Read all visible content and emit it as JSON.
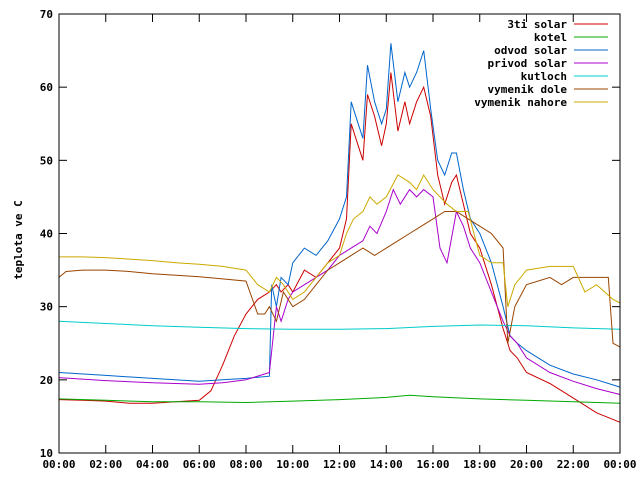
{
  "chart_data": {
    "type": "line",
    "title": "",
    "xlabel": "",
    "ylabel": "teplota ve C",
    "xlim": [
      0,
      24
    ],
    "ylim": [
      10,
      70
    ],
    "y_ticks": [
      10,
      20,
      30,
      40,
      50,
      60,
      70
    ],
    "x_ticks": [
      {
        "value": 0,
        "label": "00:00"
      },
      {
        "value": 2,
        "label": "02:00"
      },
      {
        "value": 4,
        "label": "04:00"
      },
      {
        "value": 6,
        "label": "06:00"
      },
      {
        "value": 8,
        "label": "08:00"
      },
      {
        "value": 10,
        "label": "10:00"
      },
      {
        "value": 12,
        "label": "12:00"
      },
      {
        "value": 14,
        "label": "14:00"
      },
      {
        "value": 16,
        "label": "16:00"
      },
      {
        "value": 18,
        "label": "18:00"
      },
      {
        "value": 20,
        "label": "20:00"
      },
      {
        "value": 22,
        "label": "22:00"
      },
      {
        "value": 24,
        "label": "00:00"
      }
    ],
    "grid": false,
    "legend_position": "top-right",
    "series": [
      {
        "name": "3ti solar",
        "color": "#cc0000",
        "x": [
          0,
          1,
          2,
          3,
          4,
          5,
          6,
          6.5,
          7,
          7.5,
          8,
          8.5,
          9,
          9.3,
          9.5,
          9.8,
          10,
          10.5,
          11,
          11.5,
          12,
          12.3,
          12.5,
          12.8,
          13,
          13.2,
          13.5,
          13.8,
          14,
          14.2,
          14.5,
          14.8,
          15,
          15.3,
          15.6,
          15.9,
          16.2,
          16.5,
          16.8,
          17,
          17.3,
          17.6,
          18,
          18.5,
          19,
          19.3,
          19.6,
          20,
          21,
          22,
          23,
          24
        ],
        "y": [
          17.3,
          17.2,
          17.1,
          16.8,
          16.8,
          17.0,
          17.2,
          18.5,
          22,
          26,
          29,
          31,
          32,
          33,
          32,
          33,
          32,
          35,
          34,
          36,
          38,
          42,
          55,
          52,
          50,
          59,
          56,
          52,
          55,
          62,
          54,
          58,
          55,
          58,
          60,
          56,
          48,
          44,
          47,
          48,
          44,
          40,
          38,
          33,
          27,
          24,
          23,
          21,
          19.5,
          17.5,
          15.5,
          14.2
        ]
      },
      {
        "name": "kotel",
        "color": "#00aa00",
        "x": [
          0,
          2,
          4,
          6,
          8,
          10,
          12,
          14,
          15,
          16,
          18,
          20,
          22,
          24
        ],
        "y": [
          17.4,
          17.2,
          17.0,
          17.0,
          16.9,
          17.1,
          17.3,
          17.6,
          17.9,
          17.7,
          17.4,
          17.2,
          17.0,
          16.8
        ]
      },
      {
        "name": "odvod solar",
        "color": "#0066cc",
        "x": [
          0,
          2,
          4,
          6,
          7,
          8,
          9,
          9.1,
          9.3,
          9.5,
          9.8,
          10,
          10.5,
          11,
          11.5,
          12,
          12.3,
          12.5,
          12.8,
          13,
          13.2,
          13.5,
          13.8,
          14,
          14.2,
          14.5,
          14.8,
          15,
          15.3,
          15.6,
          15.9,
          16.2,
          16.5,
          16.8,
          17,
          17.3,
          17.6,
          18,
          18.5,
          19,
          19.3,
          19.6,
          20,
          21,
          22,
          23,
          24
        ],
        "y": [
          21,
          20.6,
          20.2,
          19.8,
          20,
          20.2,
          20.5,
          33,
          30,
          34,
          33,
          36,
          38,
          37,
          39,
          42,
          45,
          58,
          55,
          53,
          63,
          58,
          55,
          57,
          66,
          58,
          62,
          60,
          62,
          65,
          57,
          50,
          48,
          51,
          51,
          46,
          42,
          40,
          36,
          30,
          26,
          25,
          24,
          22,
          20.8,
          20,
          19
        ]
      },
      {
        "name": "privod solar",
        "color": "#aa00cc",
        "x": [
          0,
          2,
          4,
          6,
          7,
          8,
          9,
          9.3,
          9.5,
          9.8,
          10,
          10.5,
          11,
          11.5,
          12,
          12.5,
          13,
          13.3,
          13.6,
          14,
          14.3,
          14.6,
          15,
          15.3,
          15.6,
          16,
          16.3,
          16.6,
          17,
          17.3,
          17.6,
          18,
          18.5,
          19,
          19.3,
          19.6,
          20,
          21,
          22,
          23,
          24
        ],
        "y": [
          20.3,
          19.9,
          19.6,
          19.4,
          19.6,
          20,
          21,
          30,
          28,
          31,
          32,
          33,
          34,
          35,
          37,
          38,
          39,
          41,
          40,
          43,
          46,
          44,
          46,
          45,
          46,
          45,
          38,
          36,
          43,
          41,
          38,
          36,
          32,
          28,
          26,
          25,
          23,
          21,
          19.8,
          18.8,
          18
        ]
      },
      {
        "name": "kutloch",
        "color": "#00cccc",
        "x": [
          0,
          2,
          4,
          6,
          8,
          10,
          12,
          14,
          16,
          18,
          20,
          22,
          24
        ],
        "y": [
          28,
          27.7,
          27.4,
          27.2,
          27.0,
          26.9,
          26.9,
          27.0,
          27.3,
          27.5,
          27.4,
          27.1,
          26.9
        ]
      },
      {
        "name": "vymenik dole",
        "color": "#994400",
        "x": [
          0,
          0.3,
          1,
          2,
          3,
          4,
          5,
          6,
          7,
          8,
          8.5,
          8.8,
          9,
          9.3,
          9.6,
          10,
          10.5,
          11,
          11.5,
          12,
          12.5,
          13,
          13.5,
          14,
          14.5,
          15,
          15.5,
          16,
          16.5,
          17,
          17.5,
          18,
          18.5,
          19,
          19.2,
          19.5,
          20,
          21,
          21.5,
          22,
          23,
          23.5,
          23.7,
          24
        ],
        "y": [
          34,
          34.8,
          35,
          35,
          34.8,
          34.5,
          34.3,
          34.1,
          33.8,
          33.5,
          29,
          29,
          30,
          28,
          32,
          30,
          31,
          33,
          35,
          36,
          37,
          38,
          37,
          38,
          39,
          40,
          41,
          42,
          43,
          43,
          42,
          41,
          40,
          38,
          25,
          30,
          33,
          34,
          33,
          34,
          34,
          34,
          25,
          24.5
        ]
      },
      {
        "name": "vymenik nahore",
        "color": "#ccaa00",
        "x": [
          0,
          1,
          2,
          3,
          4,
          5,
          6,
          7,
          8,
          8.5,
          9,
          9.3,
          9.6,
          10,
          10.5,
          11,
          11.5,
          12,
          12.3,
          12.6,
          13,
          13.3,
          13.6,
          14,
          14.5,
          15,
          15.3,
          15.6,
          16,
          16.3,
          16.6,
          17,
          17.5,
          18,
          18.5,
          19,
          19.2,
          19.5,
          20,
          21,
          22,
          22.5,
          23,
          23.7,
          24
        ],
        "y": [
          36.8,
          36.8,
          36.7,
          36.5,
          36.3,
          36,
          35.8,
          35.5,
          35,
          33,
          32,
          34,
          33,
          31,
          32,
          34,
          36,
          37,
          40,
          42,
          43,
          45,
          44,
          45,
          48,
          47,
          46,
          48,
          46,
          45,
          44,
          43,
          43,
          37,
          36,
          36,
          30,
          33,
          35,
          35.5,
          35.5,
          32,
          33,
          31,
          30.5
        ]
      }
    ]
  }
}
